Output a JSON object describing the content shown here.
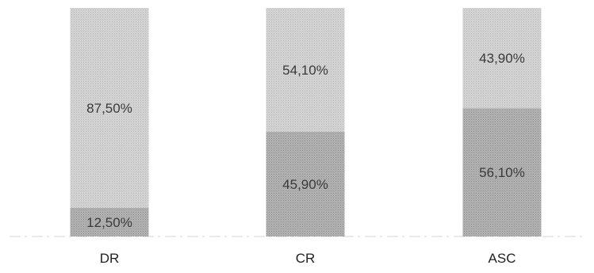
{
  "chart_data": {
    "type": "bar",
    "stacked": true,
    "percent_stacked": true,
    "categories": [
      "DR",
      "CR",
      "ASC"
    ],
    "series": [
      {
        "values": [
          12.5,
          45.9,
          56.1
        ],
        "labels": [
          "12,50%",
          "45,90%",
          "56,10%"
        ],
        "color": "#a9a9a9"
      },
      {
        "values": [
          87.5,
          54.1,
          43.9
        ],
        "labels": [
          "87,50%",
          "54,10%",
          "43,90%"
        ],
        "color": "#cfcfcf"
      }
    ],
    "ylim": [
      0,
      100
    ],
    "grid": false,
    "legend": "none",
    "title": "",
    "xlabel": "",
    "ylabel": ""
  }
}
